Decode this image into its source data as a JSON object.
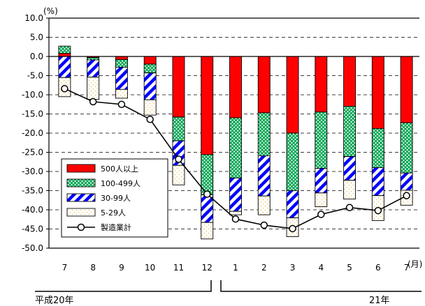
{
  "chart_data": {
    "type": "bar",
    "stacked": true,
    "unit_label": "(%)",
    "x_unit_label": "(月)",
    "categories": [
      "7",
      "8",
      "9",
      "10",
      "11",
      "12",
      "1",
      "2",
      "3",
      "4",
      "5",
      "6",
      "7"
    ],
    "period_labels": [
      "平成20年",
      "21年"
    ],
    "ylim": [
      -50,
      10
    ],
    "yticks": [
      "10.0",
      "5.0",
      "0.0",
      "-5.0",
      "-10.0",
      "-15.0",
      "-20.0",
      "-25.0",
      "-30.0",
      "-35.0",
      "-40.0",
      "-45.0",
      "-50.0"
    ],
    "grid": "dashed horizontal",
    "legend_position": "lower-left",
    "series": [
      {
        "name": "500人以上",
        "color": "#ff0000",
        "pattern": "solid",
        "values": [
          0.8,
          -0.3,
          -0.8,
          -2.0,
          -15.8,
          -25.6,
          -16.0,
          -14.7,
          -20.0,
          -14.5,
          -13.0,
          -18.8,
          -17.3
        ]
      },
      {
        "name": "100-499人",
        "color": "#00a651",
        "pattern": "cross-hatch",
        "values": [
          1.9,
          -0.6,
          -2.0,
          -2.3,
          -6.2,
          -10.5,
          -15.7,
          -11.2,
          -15.0,
          -14.7,
          -13.1,
          -10.2,
          -13.1
        ]
      },
      {
        "name": "30-99人",
        "color": "#0000ff",
        "pattern": "diagonal-stripes",
        "values": [
          -5.5,
          -4.5,
          -5.8,
          -7.0,
          -6.4,
          -7.2,
          -8.7,
          -10.5,
          -7.1,
          -6.4,
          -6.2,
          -7.3,
          -4.5
        ]
      },
      {
        "name": "5-29人",
        "color": "#f2d16b",
        "pattern": "dots",
        "values": [
          -5.0,
          -5.8,
          -2.3,
          -4.0,
          -5.1,
          -4.3,
          -0.9,
          -4.9,
          -4.9,
          -3.6,
          -4.9,
          -6.5,
          -3.9
        ]
      }
    ],
    "line_series": {
      "name": "製造業計",
      "values": [
        -8.4,
        -11.8,
        -12.5,
        -16.4,
        -26.8,
        -35.9,
        -42.4,
        -44.0,
        -44.9,
        -41.2,
        -39.4,
        -40.2,
        -36.3
      ]
    }
  }
}
